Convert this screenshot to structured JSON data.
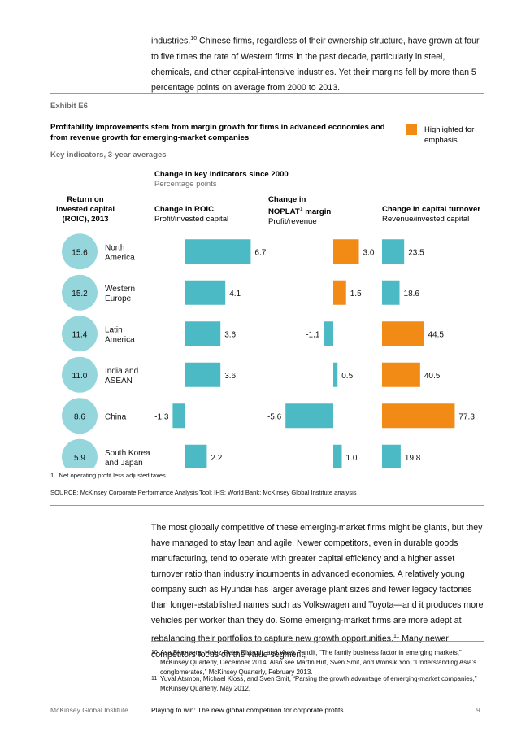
{
  "intro_paragraph": {
    "before_note": "industries.",
    "note": "10",
    "after_note": " Chinese firms, regardless of their ownership structure, have grown at four to five times the rate of Western firms in the past decade, particularly in steel, chemicals, and other capital-intensive industries. Yet their margins fell by more than 5 percentage points on average from 2000 to 2013."
  },
  "exhibit": {
    "label": "Exhibit E6",
    "title": "Profitability improvements stem from margin growth for firms in advanced economies and from revenue growth for emerging-market companies",
    "subtitle": "Key indicators, 3-year averages",
    "legend": {
      "label": "Highlighted for emphasis",
      "color": "#f28a16"
    },
    "change_header": "Change in key indicators since 2000",
    "change_unit": "Percentage points",
    "footnote_number": "1",
    "footnote_text": "Net operating profit less adjusted taxes.",
    "source": "SOURCE:  McKinsey Corporate Performance Analysis Tool; IHS; World Bank; McKinsey Global Institute analysis"
  },
  "chart_data": {
    "type": "bar",
    "title": "Profitability improvements stem from margin growth for firms in advanced economies and from revenue growth for emerging-market companies",
    "colors": {
      "base": "#4bbac4",
      "highlight": "#f28a16",
      "circle": "#94d6db"
    },
    "categories": [
      "North America",
      "Western Europe",
      "Latin America",
      "India and ASEAN",
      "China",
      "South Korea and Japan"
    ],
    "roic_2013": {
      "header_lines": [
        "Return on",
        "invested capital",
        "(ROIC), 2013"
      ],
      "values": [
        "15.6",
        "15.2",
        "11.4",
        "11.0",
        "8.6",
        "5.9"
      ]
    },
    "series": [
      {
        "name": "Change in ROIC",
        "unit_label": "Profit/invested capital",
        "values": [
          6.7,
          4.1,
          3.6,
          3.6,
          -1.3,
          2.2
        ],
        "labels": [
          "6.7",
          "4.1",
          "3.6",
          "3.6",
          "-1.3",
          "2.2"
        ],
        "highlighted": [
          false,
          false,
          false,
          false,
          false,
          false
        ]
      },
      {
        "name": "Change in NOPLAT margin",
        "header_lines": [
          "Change in",
          "NOPLAT",
          "1",
          " margin"
        ],
        "unit_label": "Profit/revenue",
        "values": [
          3.0,
          1.5,
          -1.1,
          0.5,
          -5.6,
          1.0
        ],
        "labels": [
          "3.0",
          "1.5",
          "-1.1",
          "0.5",
          "-5.6",
          "1.0"
        ],
        "highlighted": [
          true,
          true,
          false,
          false,
          false,
          false
        ]
      },
      {
        "name": "Change in capital turnover",
        "unit_label": "Revenue/invested capital",
        "values": [
          23.5,
          18.6,
          44.5,
          40.5,
          77.3,
          19.8
        ],
        "labels": [
          "23.5",
          "18.6",
          "44.5",
          "40.5",
          "77.3",
          "19.8"
        ],
        "highlighted": [
          false,
          false,
          true,
          true,
          true,
          false
        ]
      }
    ]
  },
  "body_paragraph": {
    "before_note": "The most globally competitive of these emerging-market firms might be giants, but they have managed to stay lean and agile. Newer competitors, even in durable goods manufacturing, tend to operate with greater capital efficiency and a higher asset turnover ratio than industry incumbents in advanced economies. A relatively young company such as Hyundai has larger average plant sizes and fewer legacy factories than longer-established names such as Volkswagen and Toyota—and it produces more vehicles per worker than they do. Some emerging-market firms are more adept at rebalancing their portfolios to capture new growth opportunities.",
    "note": "11",
    "after_note": " Many newer competitors focus on the value segment,"
  },
  "footnotes": [
    {
      "number": "10",
      "text": "Asa Bjornberg, Heinz-Peter Elstrodt, and Vivek Pandit, “The family business factor in emerging markets,” McKinsey Quarterly, December 2014. Also see Martin Hirt, Sven Smit, and Wonsik Yoo, “Understanding Asia’s conglomerates,” McKinsey Quarterly, February 2013."
    },
    {
      "number": "11",
      "text": "Yuval Atsmon, Michael Kloss, and Sven Smit, “Parsing the growth advantage of emerging-market companies,” McKinsey Quarterly, May 2012."
    }
  ],
  "footer": {
    "publisher": "McKinsey Global Institute",
    "report_title": "Playing to win: The new global competition for corporate profits",
    "page_number": "9"
  }
}
